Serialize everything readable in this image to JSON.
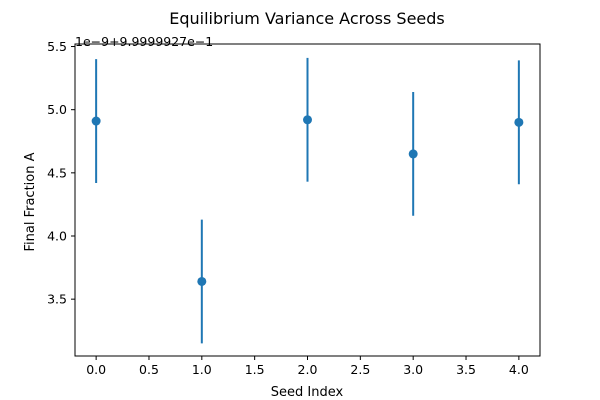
{
  "chart_data": {
    "type": "scatter",
    "title": "Equilibrium Variance Across Seeds",
    "xlabel": "Seed Index",
    "ylabel": "Final Fraction A",
    "axis_offset_text": "1e−9+9.9999927e−1",
    "xlim": [
      -0.2,
      4.2
    ],
    "ylim": [
      3.05,
      5.52
    ],
    "x_ticks": [
      0.0,
      0.5,
      1.0,
      1.5,
      2.0,
      2.5,
      3.0,
      3.5,
      4.0
    ],
    "x_tick_labels": [
      "0.0",
      "0.5",
      "1.0",
      "1.5",
      "2.0",
      "2.5",
      "3.0",
      "3.5",
      "4.0"
    ],
    "y_ticks": [
      3.5,
      4.0,
      4.5,
      5.0,
      5.5
    ],
    "y_tick_labels": [
      "3.5",
      "4.0",
      "4.5",
      "5.0",
      "5.5"
    ],
    "grid": false,
    "color": "#1f77b4",
    "points": [
      {
        "x": 0,
        "y": 4.91,
        "err": 0.49
      },
      {
        "x": 1,
        "y": 3.64,
        "err": 0.49
      },
      {
        "x": 2,
        "y": 4.92,
        "err": 0.49
      },
      {
        "x": 3,
        "y": 4.65,
        "err": 0.49
      },
      {
        "x": 4,
        "y": 4.9,
        "err": 0.49
      }
    ]
  }
}
